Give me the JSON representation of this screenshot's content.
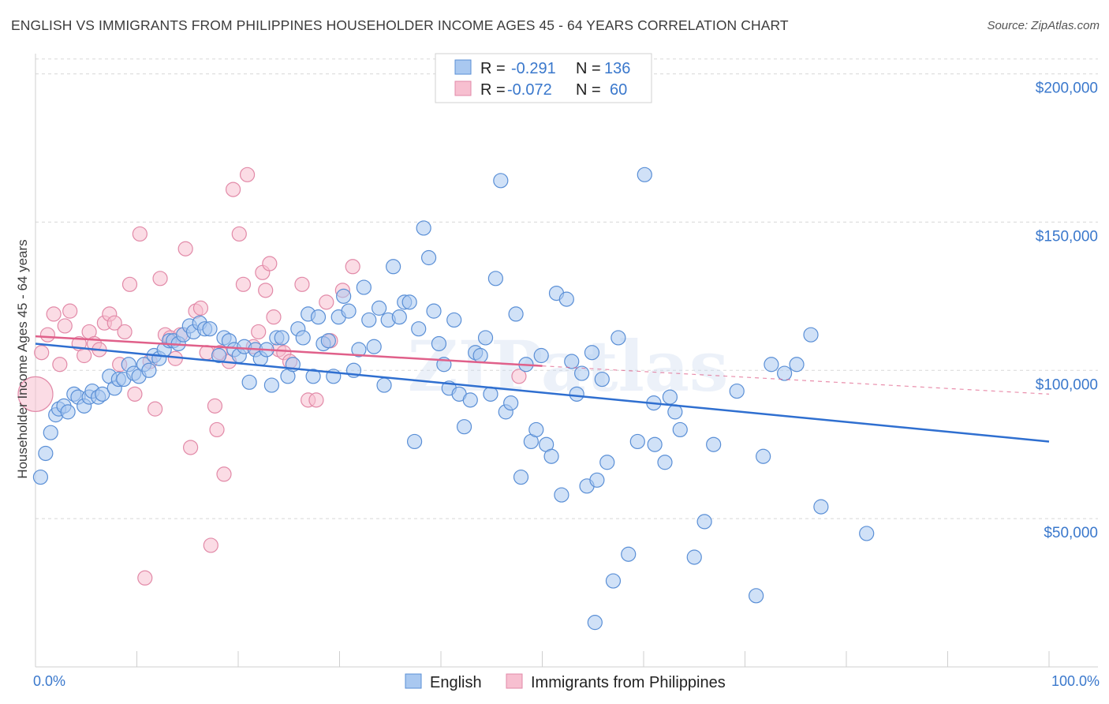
{
  "title": "ENGLISH VS IMMIGRANTS FROM PHILIPPINES HOUSEHOLDER INCOME AGES 45 - 64 YEARS CORRELATION CHART",
  "source": "Source: ZipAtlas.com",
  "watermark": "ZIPatlas",
  "legend": {
    "rows": [
      {
        "r_label": "R =",
        "r_value": "-0.291",
        "n_label": "N =",
        "n_value": "136"
      },
      {
        "r_label": "R =",
        "r_value": "-0.072",
        "n_label": "N =",
        "n_value": "60"
      }
    ]
  },
  "bottom_legend": [
    "English",
    "Immigrants from Philippines"
  ],
  "colors": {
    "english_fill": "#a9c8f0",
    "english_stroke": "#5a8fd6",
    "english_line": "#2f6fd0",
    "phil_fill": "#f7bfd0",
    "phil_stroke": "#e28aa8",
    "phil_line": "#e0608a",
    "tick_text": "#3a78cc",
    "grid": "#d8d8d8"
  },
  "chart_data": {
    "type": "scatter",
    "xlabel": "",
    "ylabel": "Householder Income Ages 45 - 64 years",
    "xlim": [
      0,
      100
    ],
    "ylim": [
      0,
      210000
    ],
    "x_tick_labels": [
      "0.0%",
      "100.0%"
    ],
    "y_ticks": [
      50000,
      100000,
      150000,
      200000
    ],
    "y_tick_labels": [
      "$50,000",
      "$100,000",
      "$150,000",
      "$200,000"
    ],
    "grid": true,
    "legend_position": "top-center",
    "series": [
      {
        "name": "English",
        "trend": {
          "x": [
            0,
            100
          ],
          "y": [
            109000,
            76000
          ]
        },
        "points": [
          [
            0.5,
            64000
          ],
          [
            1,
            72000
          ],
          [
            1.5,
            79000
          ],
          [
            2,
            85000
          ],
          [
            2.3,
            87000
          ],
          [
            2.8,
            88000
          ],
          [
            3.2,
            86000
          ],
          [
            3.8,
            92000
          ],
          [
            4.2,
            91000
          ],
          [
            4.8,
            88000
          ],
          [
            5.3,
            91000
          ],
          [
            5.6,
            93000
          ],
          [
            6.2,
            91000
          ],
          [
            6.6,
            92000
          ],
          [
            7.3,
            98000
          ],
          [
            7.8,
            94000
          ],
          [
            8.2,
            97000
          ],
          [
            8.7,
            97000
          ],
          [
            9.2,
            102000
          ],
          [
            9.7,
            99000
          ],
          [
            10.2,
            98000
          ],
          [
            10.7,
            102000
          ],
          [
            11.2,
            100000
          ],
          [
            11.7,
            105000
          ],
          [
            12.2,
            104000
          ],
          [
            12.7,
            107000
          ],
          [
            13.2,
            110000
          ],
          [
            13.6,
            110000
          ],
          [
            14.1,
            109000
          ],
          [
            14.6,
            112000
          ],
          [
            15.2,
            115000
          ],
          [
            15.6,
            113000
          ],
          [
            16.2,
            116000
          ],
          [
            16.7,
            114000
          ],
          [
            17.2,
            114000
          ],
          [
            18.1,
            105000
          ],
          [
            18.6,
            111000
          ],
          [
            19.1,
            110000
          ],
          [
            19.6,
            107000
          ],
          [
            20.1,
            105000
          ],
          [
            20.6,
            108000
          ],
          [
            21.1,
            96000
          ],
          [
            21.7,
            107000
          ],
          [
            22.2,
            104000
          ],
          [
            22.8,
            107000
          ],
          [
            23.3,
            95000
          ],
          [
            23.8,
            111000
          ],
          [
            24.3,
            111000
          ],
          [
            24.9,
            98000
          ],
          [
            25.4,
            102000
          ],
          [
            25.9,
            114000
          ],
          [
            26.4,
            111000
          ],
          [
            26.9,
            119000
          ],
          [
            27.4,
            98000
          ],
          [
            27.9,
            118000
          ],
          [
            28.4,
            109000
          ],
          [
            28.9,
            110000
          ],
          [
            29.4,
            98000
          ],
          [
            29.9,
            118000
          ],
          [
            30.4,
            125000
          ],
          [
            30.9,
            120000
          ],
          [
            31.4,
            100000
          ],
          [
            31.9,
            107000
          ],
          [
            32.4,
            128000
          ],
          [
            32.9,
            117000
          ],
          [
            33.4,
            108000
          ],
          [
            33.9,
            121000
          ],
          [
            34.4,
            95000
          ],
          [
            34.8,
            117000
          ],
          [
            35.3,
            135000
          ],
          [
            35.9,
            118000
          ],
          [
            36.4,
            123000
          ],
          [
            36.9,
            123000
          ],
          [
            37.4,
            76000
          ],
          [
            37.8,
            114000
          ],
          [
            38.3,
            148000
          ],
          [
            38.8,
            138000
          ],
          [
            39.3,
            120000
          ],
          [
            39.8,
            109000
          ],
          [
            40.3,
            102000
          ],
          [
            40.8,
            94000
          ],
          [
            41.3,
            117000
          ],
          [
            41.8,
            92000
          ],
          [
            42.3,
            81000
          ],
          [
            42.9,
            90000
          ],
          [
            43.4,
            106000
          ],
          [
            43.9,
            105000
          ],
          [
            44.4,
            111000
          ],
          [
            44.9,
            92000
          ],
          [
            45.4,
            131000
          ],
          [
            45.9,
            164000
          ],
          [
            46.4,
            86000
          ],
          [
            46.9,
            89000
          ],
          [
            47.4,
            119000
          ],
          [
            47.9,
            64000
          ],
          [
            48.4,
            102000
          ],
          [
            48.9,
            76000
          ],
          [
            49.4,
            80000
          ],
          [
            49.9,
            105000
          ],
          [
            50.4,
            75000
          ],
          [
            50.9,
            71000
          ],
          [
            51.4,
            126000
          ],
          [
            51.9,
            58000
          ],
          [
            52.4,
            124000
          ],
          [
            52.9,
            103000
          ],
          [
            53.4,
            92000
          ],
          [
            53.9,
            99000
          ],
          [
            54.4,
            61000
          ],
          [
            54.9,
            106000
          ],
          [
            55.4,
            63000
          ],
          [
            55.9,
            97000
          ],
          [
            56.4,
            69000
          ],
          [
            57.0,
            29000
          ],
          [
            57.5,
            111000
          ],
          [
            58.5,
            38000
          ],
          [
            59.4,
            76000
          ],
          [
            60.1,
            166000
          ],
          [
            61.1,
            75000
          ],
          [
            61.0,
            89000
          ],
          [
            62.1,
            69000
          ],
          [
            62.6,
            91000
          ],
          [
            63.1,
            86000
          ],
          [
            63.6,
            80000
          ],
          [
            65.0,
            37000
          ],
          [
            66.0,
            49000
          ],
          [
            66.9,
            75000
          ],
          [
            69.2,
            93000
          ],
          [
            71.1,
            24000
          ],
          [
            71.8,
            71000
          ],
          [
            72.6,
            102000
          ],
          [
            73.9,
            99000
          ],
          [
            75.1,
            102000
          ],
          [
            76.5,
            112000
          ],
          [
            77.5,
            54000
          ],
          [
            82.0,
            45000
          ],
          [
            55.2,
            15000
          ]
        ]
      },
      {
        "name": "Immigrants from Philippines",
        "trend": {
          "x": [
            0,
            50
          ],
          "y": [
            111500,
            101500
          ]
        },
        "trend_dashed": {
          "x": [
            50,
            100
          ],
          "y": [
            101500,
            92000
          ]
        },
        "points": [
          [
            0,
            92000
          ],
          [
            0.6,
            106000
          ],
          [
            1.2,
            112000
          ],
          [
            1.8,
            119000
          ],
          [
            2.4,
            102000
          ],
          [
            2.9,
            115000
          ],
          [
            3.4,
            120000
          ],
          [
            4.3,
            109000
          ],
          [
            4.8,
            105000
          ],
          [
            5.3,
            113000
          ],
          [
            5.8,
            109000
          ],
          [
            6.3,
            107000
          ],
          [
            6.8,
            116000
          ],
          [
            7.3,
            119000
          ],
          [
            7.8,
            116000
          ],
          [
            8.3,
            102000
          ],
          [
            8.8,
            113000
          ],
          [
            9.3,
            129000
          ],
          [
            9.8,
            92000
          ],
          [
            10.3,
            146000
          ],
          [
            10.8,
            30000
          ],
          [
            11.3,
            103000
          ],
          [
            11.8,
            87000
          ],
          [
            12.3,
            131000
          ],
          [
            12.8,
            112000
          ],
          [
            13.3,
            111000
          ],
          [
            13.8,
            104000
          ],
          [
            14.3,
            112000
          ],
          [
            14.8,
            141000
          ],
          [
            15.3,
            74000
          ],
          [
            15.8,
            120000
          ],
          [
            16.3,
            121000
          ],
          [
            16.9,
            106000
          ],
          [
            17.3,
            41000
          ],
          [
            17.7,
            88000
          ],
          [
            17.9,
            80000
          ],
          [
            18.2,
            106000
          ],
          [
            18.6,
            65000
          ],
          [
            19.1,
            103000
          ],
          [
            19.5,
            161000
          ],
          [
            20.1,
            146000
          ],
          [
            20.5,
            129000
          ],
          [
            20.9,
            166000
          ],
          [
            21.5,
            108000
          ],
          [
            22.0,
            113000
          ],
          [
            22.4,
            133000
          ],
          [
            22.7,
            127000
          ],
          [
            23.1,
            136000
          ],
          [
            23.5,
            118000
          ],
          [
            24.0,
            107000
          ],
          [
            24.5,
            106000
          ],
          [
            25.1,
            103000
          ],
          [
            26.3,
            129000
          ],
          [
            26.9,
            90000
          ],
          [
            27.7,
            90000
          ],
          [
            28.7,
            123000
          ],
          [
            29.1,
            110000
          ],
          [
            30.3,
            127000
          ],
          [
            31.3,
            135000
          ],
          [
            47.7,
            98000
          ]
        ]
      }
    ]
  }
}
